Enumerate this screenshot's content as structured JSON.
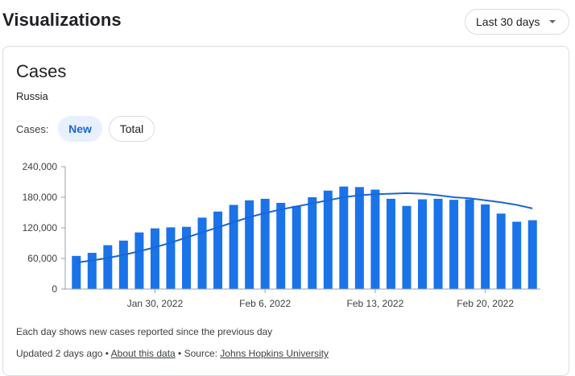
{
  "header": {
    "title": "Visualizations",
    "range_label": "Last 30 days",
    "range_icon": "arrow-drop-down-icon"
  },
  "card": {
    "title": "Cases",
    "region": "Russia",
    "toggle_label": "Cases:",
    "chips": {
      "new": "New",
      "total": "Total"
    },
    "footnote": "Each day shows new cases reported since the previous day",
    "updated_text": "Updated 2 days ago",
    "separator": "•",
    "about_link": "About this data",
    "source_prefix": "Source:",
    "source_link": "Johns Hopkins University"
  },
  "colors": {
    "bar": "#1a73e8",
    "average_line": "#1967d2",
    "chip_active_bg": "#e8f0fe"
  },
  "chart_data": {
    "type": "bar",
    "x": [
      "2022-01-25",
      "2022-01-26",
      "2022-01-27",
      "2022-01-28",
      "2022-01-29",
      "2022-01-30",
      "2022-01-31",
      "2022-02-01",
      "2022-02-02",
      "2022-02-03",
      "2022-02-04",
      "2022-02-05",
      "2022-02-06",
      "2022-02-07",
      "2022-02-08",
      "2022-02-09",
      "2022-02-10",
      "2022-02-11",
      "2022-02-12",
      "2022-02-13",
      "2022-02-14",
      "2022-02-15",
      "2022-02-16",
      "2022-02-17",
      "2022-02-18",
      "2022-02-19",
      "2022-02-20",
      "2022-02-21",
      "2022-02-22",
      "2022-02-23"
    ],
    "series": [
      {
        "type": "bar",
        "values": [
          65000,
          71000,
          86000,
          95000,
          111000,
          119000,
          121000,
          122000,
          140000,
          152000,
          165000,
          174000,
          177000,
          169000,
          163000,
          180000,
          193000,
          201000,
          200000,
          195000,
          177000,
          163000,
          176000,
          177000,
          175000,
          176000,
          166000,
          148000,
          132000,
          135000
        ]
      },
      {
        "type": "line",
        "values": [
          52000,
          56000,
          61000,
          67000,
          74000,
          82000,
          91000,
          101000,
          111000,
          121000,
          131000,
          141000,
          149000,
          156000,
          162000,
          168000,
          174000,
          180000,
          184000,
          186000,
          187000,
          188000,
          187000,
          184000,
          180000,
          178000,
          174000,
          170000,
          165000,
          158000
        ]
      }
    ],
    "yticks": [
      "0",
      "60,000",
      "120,000",
      "180,000",
      "240,000"
    ],
    "ytick_values": [
      0,
      60000,
      120000,
      180000,
      240000
    ],
    "ylim": [
      0,
      240000
    ],
    "xtick_labels": [
      {
        "index": 5,
        "label": "Jan 30, 2022"
      },
      {
        "index": 12,
        "label": "Feb 6, 2022"
      },
      {
        "index": 19,
        "label": "Feb 13, 2022"
      },
      {
        "index": 26,
        "label": "Feb 20, 2022"
      }
    ],
    "grid": false,
    "legend": "none"
  }
}
